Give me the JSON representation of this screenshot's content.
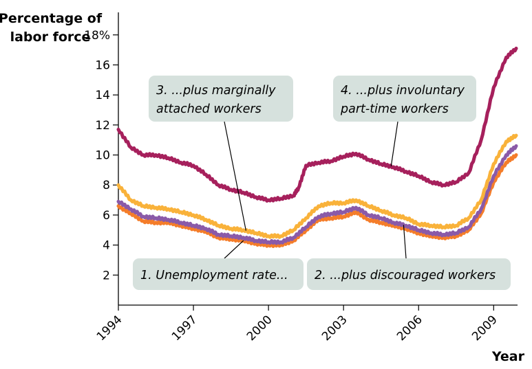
{
  "chart_data": {
    "type": "line",
    "ylabel_lines": [
      "Percentage of",
      "labor force"
    ],
    "xlabel": "Year",
    "xlim": [
      1994,
      2009.9
    ],
    "ylim": [
      0,
      19.5
    ],
    "y_ticks": [
      2,
      4,
      6,
      8,
      10,
      12,
      14,
      16,
      18
    ],
    "y_tick_labels": [
      "2",
      "4",
      "6",
      "8",
      "10",
      "12",
      "14",
      "16",
      "18%"
    ],
    "x_ticks": [
      1994,
      1997,
      2000,
      2003,
      2006,
      2009
    ],
    "x_tick_labels": [
      "1994",
      "1997",
      "2000",
      "2003",
      "2006",
      "2009"
    ],
    "grid": false,
    "legend": "none",
    "series": [
      {
        "name": "1. Unemployment rate...",
        "color": "#f47d2a",
        "x": [
          1994,
          1994.5,
          1995,
          1995.5,
          1996,
          1996.5,
          1997,
          1997.5,
          1998,
          1998.5,
          1999,
          1999.5,
          2000,
          2000.5,
          2001,
          2001.5,
          2002,
          2002.5,
          2003,
          2003.5,
          2004,
          2004.5,
          2005,
          2005.5,
          2006,
          2006.5,
          2007,
          2007.5,
          2008,
          2008.5,
          2009,
          2009.5,
          2009.9
        ],
        "values": [
          6.6,
          6.1,
          5.6,
          5.5,
          5.5,
          5.3,
          5.1,
          4.9,
          4.5,
          4.4,
          4.3,
          4.1,
          4.0,
          4.0,
          4.3,
          5.0,
          5.7,
          5.8,
          5.9,
          6.2,
          5.7,
          5.5,
          5.3,
          5.1,
          4.8,
          4.6,
          4.5,
          4.6,
          5.0,
          6.1,
          8.2,
          9.5,
          10.0
        ]
      },
      {
        "name": "2. ...plus discouraged workers",
        "color": "#8a5aa8",
        "x": [
          1994,
          1994.5,
          1995,
          1995.5,
          1996,
          1996.5,
          1997,
          1997.5,
          1998,
          1998.5,
          1999,
          1999.5,
          2000,
          2000.5,
          2001,
          2001.5,
          2002,
          2002.5,
          2003,
          2003.5,
          2004,
          2004.5,
          2005,
          2005.5,
          2006,
          2006.5,
          2007,
          2007.5,
          2008,
          2008.5,
          2009,
          2009.5,
          2009.9
        ],
        "values": [
          6.9,
          6.4,
          5.9,
          5.8,
          5.7,
          5.5,
          5.3,
          5.1,
          4.7,
          4.6,
          4.5,
          4.3,
          4.2,
          4.2,
          4.5,
          5.2,
          5.9,
          6.1,
          6.2,
          6.5,
          6.0,
          5.8,
          5.5,
          5.3,
          5.0,
          4.8,
          4.7,
          4.8,
          5.2,
          6.4,
          8.6,
          10.0,
          10.6
        ]
      },
      {
        "name": "3. ...plus marginally attached workers",
        "color": "#f9b23a",
        "x": [
          1994,
          1994.5,
          1995,
          1995.5,
          1996,
          1996.5,
          1997,
          1997.5,
          1998,
          1998.5,
          1999,
          1999.5,
          2000,
          2000.5,
          2001,
          2001.5,
          2002,
          2002.5,
          2003,
          2003.5,
          2004,
          2004.5,
          2005,
          2005.5,
          2006,
          2006.5,
          2007,
          2007.5,
          2008,
          2008.5,
          2009,
          2009.5,
          2009.9
        ],
        "values": [
          8.0,
          7.0,
          6.6,
          6.5,
          6.4,
          6.2,
          6.0,
          5.7,
          5.3,
          5.1,
          5.0,
          4.8,
          4.6,
          4.6,
          5.0,
          5.8,
          6.6,
          6.8,
          6.8,
          7.0,
          6.6,
          6.3,
          6.0,
          5.8,
          5.4,
          5.3,
          5.2,
          5.3,
          5.8,
          7.0,
          9.4,
          10.9,
          11.3
        ]
      },
      {
        "name": "4. ...plus involuntary part-time workers",
        "color": "#a6205c",
        "x": [
          1994,
          1994.5,
          1995,
          1995.5,
          1996,
          1996.5,
          1997,
          1997.5,
          1998,
          1998.5,
          1999,
          1999.5,
          2000,
          2000.5,
          2001,
          2001.2,
          2001.5,
          2002,
          2002.5,
          2003,
          2003.5,
          2004,
          2004.5,
          2005,
          2005.5,
          2006,
          2006.5,
          2007,
          2007.5,
          2008,
          2008.5,
          2009,
          2009.5,
          2009.9
        ],
        "values": [
          11.7,
          10.5,
          10.0,
          10.0,
          9.8,
          9.5,
          9.3,
          8.7,
          8.0,
          7.7,
          7.5,
          7.2,
          7.0,
          7.1,
          7.3,
          7.8,
          9.3,
          9.5,
          9.6,
          9.9,
          10.1,
          9.7,
          9.4,
          9.2,
          8.9,
          8.6,
          8.2,
          8.0,
          8.2,
          8.8,
          11.0,
          14.5,
          16.5,
          17.1
        ]
      }
    ],
    "annotations": [
      {
        "lines": [
          "1. Unemployment rate..."
        ],
        "target_series": 0
      },
      {
        "lines": [
          "2. ...plus discouraged workers"
        ],
        "target_series": 1
      },
      {
        "lines": [
          "3. ...plus marginally",
          "attached workers"
        ],
        "target_series": 2
      },
      {
        "lines": [
          "4. ...plus involuntary",
          "part-time workers"
        ],
        "target_series": 3
      }
    ]
  }
}
